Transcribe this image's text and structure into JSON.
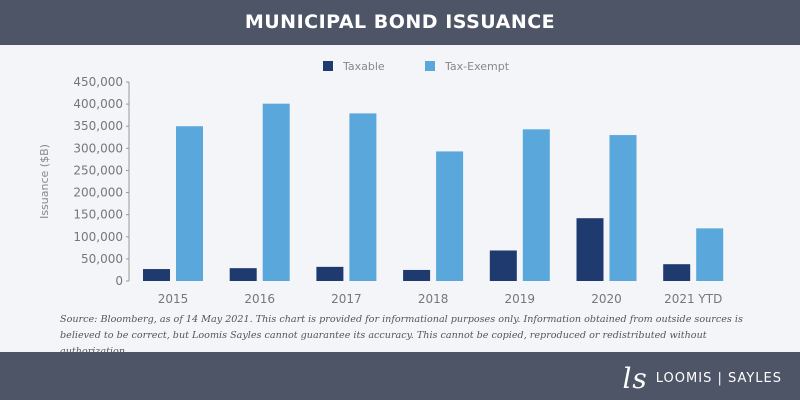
{
  "header": {
    "title": "MUNICIPAL BOND ISSUANCE"
  },
  "footer": {
    "source": "Source: Bloomberg, as of 14 May 2021. This chart is provided for informational purposes only. Information obtained from outside sources is believed to be correct, but Loomis Sayles cannot guarantee its accuracy. This cannot be copied, reproduced or redistributed without authorization.",
    "logo": "LOOMIS | SAYLES"
  },
  "chart_data": {
    "type": "bar",
    "title": "MUNICIPAL BOND ISSUANCE",
    "xlabel": "",
    "ylabel": "Issuance ($B)",
    "ylim": [
      0,
      450000
    ],
    "yticks": [
      "0",
      "50,000",
      "100,000",
      "150,000",
      "200,000",
      "250,000",
      "300,000",
      "350,000",
      "400,000",
      "450,000"
    ],
    "categories": [
      "2015",
      "2016",
      "2017",
      "2018",
      "2019",
      "2020",
      "2021 YTD"
    ],
    "legend_placement": "top-center",
    "grid": false,
    "series": [
      {
        "name": "Taxable",
        "color": "#1f3a6e",
        "values": [
          27000,
          29000,
          32000,
          25000,
          69000,
          142000,
          38000
        ]
      },
      {
        "name": "Tax-Exempt",
        "color": "#5aa7dc",
        "values": [
          350000,
          401000,
          379000,
          293000,
          343000,
          330000,
          119000
        ]
      }
    ]
  }
}
